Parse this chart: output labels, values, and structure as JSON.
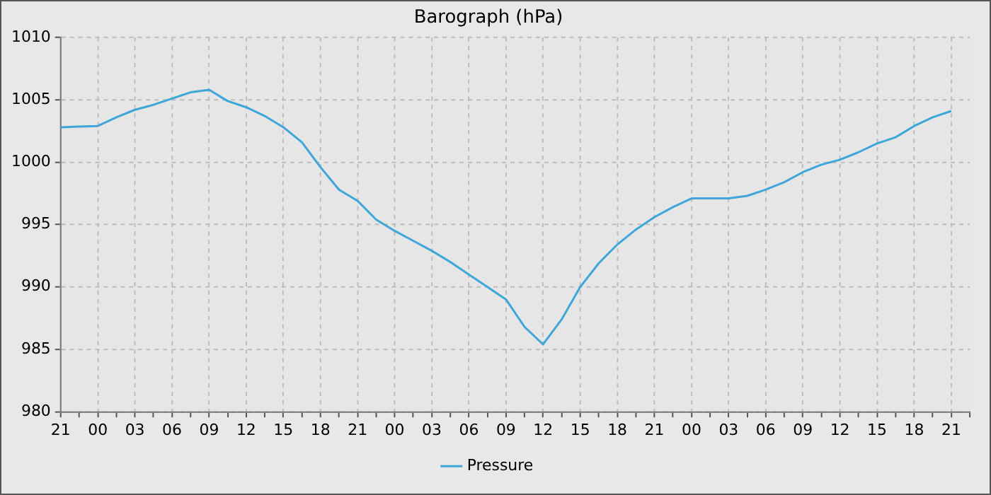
{
  "chart_data": {
    "type": "line",
    "title": "Barograph (hPa)",
    "categories": [
      "21",
      null,
      "00",
      null,
      "03",
      null,
      "06",
      null,
      "09",
      null,
      "12",
      null,
      "15",
      null,
      "18",
      null,
      "21",
      null,
      "00",
      null,
      "03",
      null,
      "06",
      null,
      "09",
      null,
      "12",
      null,
      "15",
      null,
      "18",
      null,
      "21",
      null,
      "00",
      null,
      "03",
      null,
      "06",
      null,
      "09",
      null,
      "12",
      null,
      "15",
      null,
      "18",
      null,
      "21",
      null
    ],
    "series": [
      {
        "name": "Pressure",
        "color": "#3ea6d8",
        "values": [
          1002.8,
          1002.85,
          1002.9,
          1003.6,
          1004.2,
          1004.6,
          1005.1,
          1005.6,
          1005.8,
          1004.9,
          1004.4,
          1003.7,
          1002.8,
          1001.6,
          999.6,
          997.8,
          996.9,
          995.4,
          994.5,
          993.7,
          992.9,
          992,
          991,
          990,
          989,
          986.8,
          985.4,
          987.4,
          990,
          991.9,
          993.4,
          994.6,
          995.6,
          996.4,
          997.1,
          997.1,
          997.1,
          997.3,
          997.8,
          998.4,
          999.2,
          999.8,
          1000.2,
          1000.8,
          1001.5,
          1002,
          1002.9,
          1003.6,
          1004.1,
          null
        ]
      }
    ],
    "ylim": [
      980,
      1010
    ],
    "yticks": [
      980,
      985,
      990,
      995,
      1000,
      1005,
      1010
    ],
    "grid": true,
    "legend": "bottom",
    "marker": "none",
    "line_style": "solid"
  }
}
